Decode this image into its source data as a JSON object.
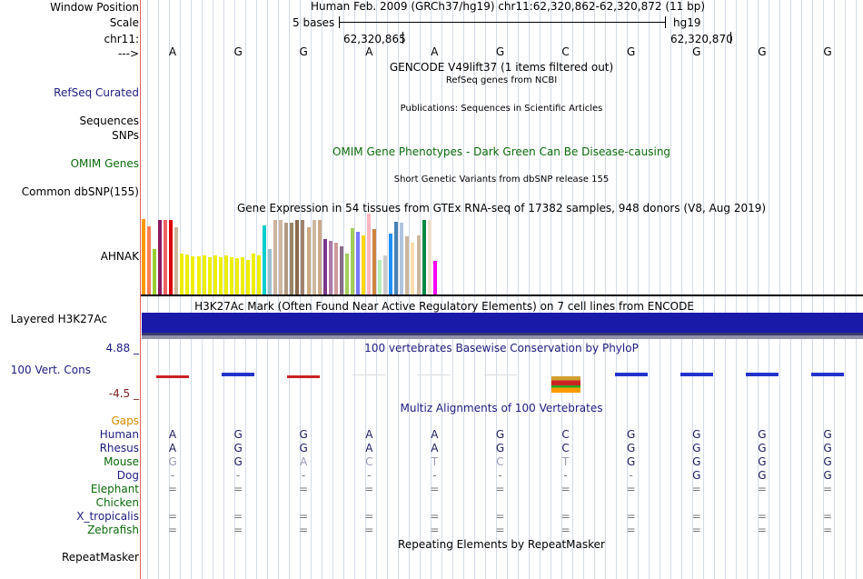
{
  "header": {
    "window_position_label": "Window Position",
    "window_position_value": "Human Feb. 2009 (GRCh37/hg19)   chr11:62,320,862-62,320,872 (11 bp)",
    "scale_label": "Scale",
    "scale_text": "5 bases",
    "assembly": "hg19",
    "chrom_label": "chr11:",
    "pos_left": "62,320,865",
    "pos_right": "62,320,870",
    "strand_label": "--->"
  },
  "bases": [
    "A",
    "G",
    "G",
    "A",
    "A",
    "G",
    "C",
    "G",
    "G",
    "G",
    "G"
  ],
  "tracks": {
    "gencode_title": "GENCODE V49lift37 (1 items filtered out)",
    "refseq_label": "RefSeq Curated",
    "refseq_title": "RefSeq genes from NCBI",
    "sequences_label": "Sequences",
    "publications_title": "Publications: Sequences in Scientific Articles",
    "snps_label": "SNPs",
    "omim_title": "OMIM Gene Phenotypes - Dark Green Can Be Disease-causing",
    "omim_label": "OMIM Genes",
    "dbsnp_title": "Short Genetic Variants from dbSNP release 155",
    "dbsnp_label": "Common dbSNP(155)",
    "gtex_title": "Gene Expression in 54 tissues from GTEx RNA-seq of 17382 samples, 948 donors (V8, Aug 2019)",
    "gtex_label": "AHNAK",
    "h3k27ac_title": "H3K27Ac Mark (Often Found Near Active Regulatory Elements) on 7 cell lines from ENCODE",
    "h3k27ac_label": "Layered H3K27Ac",
    "cons_max": "4.88 _",
    "cons_label": "100 Vert. Cons",
    "cons_min": "-4.5 _",
    "phylop_title": "100 vertebrates Basewise Conservation by PhyloP",
    "multiz_title": "Multiz Alignments of 100 Vertebrates",
    "gaps_label": "Gaps",
    "repeat_title": "Repeating Elements by RepeatMasker",
    "repeat_label": "RepeatMasker"
  },
  "gtex_levels": [
    0.93,
    0.84,
    0.56,
    0.92,
    0.92,
    0.92,
    0.83,
    0.5,
    0.49,
    0.47,
    0.47,
    0.48,
    0.46,
    0.48,
    0.46,
    0.48,
    0.46,
    0.45,
    0.46,
    0.43,
    0.5,
    0.48,
    0.85,
    0.56,
    0.92,
    0.92,
    0.89,
    0.89,
    0.92,
    0.92,
    0.83,
    0.92,
    0.92,
    0.68,
    0.66,
    0.64,
    0.6,
    0.5,
    0.82,
    0.78,
    0.73,
    1.0,
    0.81,
    0.43,
    0.48,
    0.75,
    0.9,
    0.89,
    0.72,
    0.64,
    0.73,
    0.92,
    0.92,
    0.42
  ],
  "gtex_colors": [
    "#ff9900",
    "#ff7f50",
    "#9acd32",
    "#8b1c62",
    "#ee6363",
    "#dd0000",
    "#cdb79e",
    "#eeee00",
    "#eeee00",
    "#eeee00",
    "#eeee00",
    "#eeee00",
    "#eeee00",
    "#eeee00",
    "#eeee00",
    "#eeee00",
    "#eeee00",
    "#eeee00",
    "#eeee00",
    "#eeee00",
    "#eeee00",
    "#eeee00",
    "#00cdcd",
    "#9ac0cd",
    "#ccb5a0",
    "#cdb79e",
    "#b29a82",
    "#9a8569",
    "#8b6a50",
    "#a0826d",
    "#cdaa7d",
    "#cdb79e",
    "#ccaa88",
    "#7a378b",
    "#b07ba8",
    "#cd9b9b",
    "#8b6b8b",
    "#a2cd5a",
    "#a2cd5a",
    "#7777ff",
    "#ffd700",
    "#ffb6c1",
    "#cd853f",
    "#b4eeb4",
    "#cdc9c9",
    "#1e90ff",
    "#4682b4",
    "#b0c4de",
    "#cdb79e",
    "#ffdead",
    "#cdb79e",
    "#008b45",
    "#eedfcc",
    "#ff00ff"
  ],
  "phylop_colors": [
    "#cc2222",
    "#2233cc",
    "#cc2222",
    "#cccccc",
    "#cccccc",
    "#cccccc",
    "#ffaa00",
    "#2233cc",
    "#2233cc",
    "#2233cc",
    "#2233cc"
  ],
  "alignments": [
    {
      "species": "Human",
      "color": "#1c1c80",
      "bases": [
        "A",
        "G",
        "G",
        "A",
        "A",
        "G",
        "C",
        "G",
        "G",
        "G",
        "G"
      ],
      "faded": [
        0,
        0,
        0,
        0,
        0,
        0,
        0,
        0,
        0,
        0,
        0
      ]
    },
    {
      "species": "Rhesus",
      "color": "#1c1c80",
      "bases": [
        "A",
        "G",
        "G",
        "A",
        "A",
        "G",
        "C",
        "G",
        "G",
        "G",
        "G"
      ],
      "faded": [
        0,
        0,
        0,
        0,
        0,
        0,
        0,
        0,
        0,
        0,
        0
      ]
    },
    {
      "species": "Mouse",
      "color": "#0a6b0a",
      "bases": [
        "G",
        "G",
        "A",
        "C",
        "T",
        "C",
        "T",
        "G",
        "G",
        "G",
        "G"
      ],
      "faded": [
        1,
        0,
        1,
        1,
        1,
        1,
        1,
        0,
        0,
        0,
        0
      ]
    },
    {
      "species": "Dog",
      "color": "#1c1c80",
      "bases": [
        "-",
        "-",
        "-",
        "-",
        "-",
        "-",
        "-",
        "-",
        "G",
        "G",
        "G"
      ],
      "faded": [
        1,
        1,
        1,
        1,
        1,
        1,
        1,
        1,
        0,
        0,
        0
      ]
    },
    {
      "species": "Elephant",
      "color": "#0a6b0a",
      "bases": [
        "=",
        "=",
        "=",
        "=",
        "=",
        "=",
        "=",
        "=",
        "=",
        "=",
        "="
      ],
      "faded": [
        1,
        1,
        1,
        1,
        1,
        1,
        1,
        1,
        1,
        1,
        1
      ]
    },
    {
      "species": "Chicken",
      "color": "#0a6b0a",
      "bases": [
        "",
        "",
        "",
        "",
        "",
        "",
        "",
        "",
        "",
        "",
        ""
      ],
      "faded": [
        1,
        1,
        1,
        1,
        1,
        1,
        1,
        1,
        1,
        1,
        1
      ]
    },
    {
      "species": "X_tropicalis",
      "color": "#1c1c80",
      "bases": [
        "=",
        "=",
        "=",
        "=",
        "=",
        "=",
        "=",
        "=",
        "=",
        "=",
        "="
      ],
      "faded": [
        1,
        1,
        1,
        1,
        1,
        1,
        1,
        1,
        1,
        1,
        1
      ]
    },
    {
      "species": "Zebrafish",
      "color": "#0a6b0a",
      "bases": [
        "=",
        "=",
        "=",
        "=",
        "=",
        "=",
        "=",
        "=",
        "=",
        "=",
        "="
      ],
      "faded": [
        1,
        1,
        1,
        1,
        1,
        1,
        1,
        1,
        1,
        1,
        1
      ]
    }
  ]
}
